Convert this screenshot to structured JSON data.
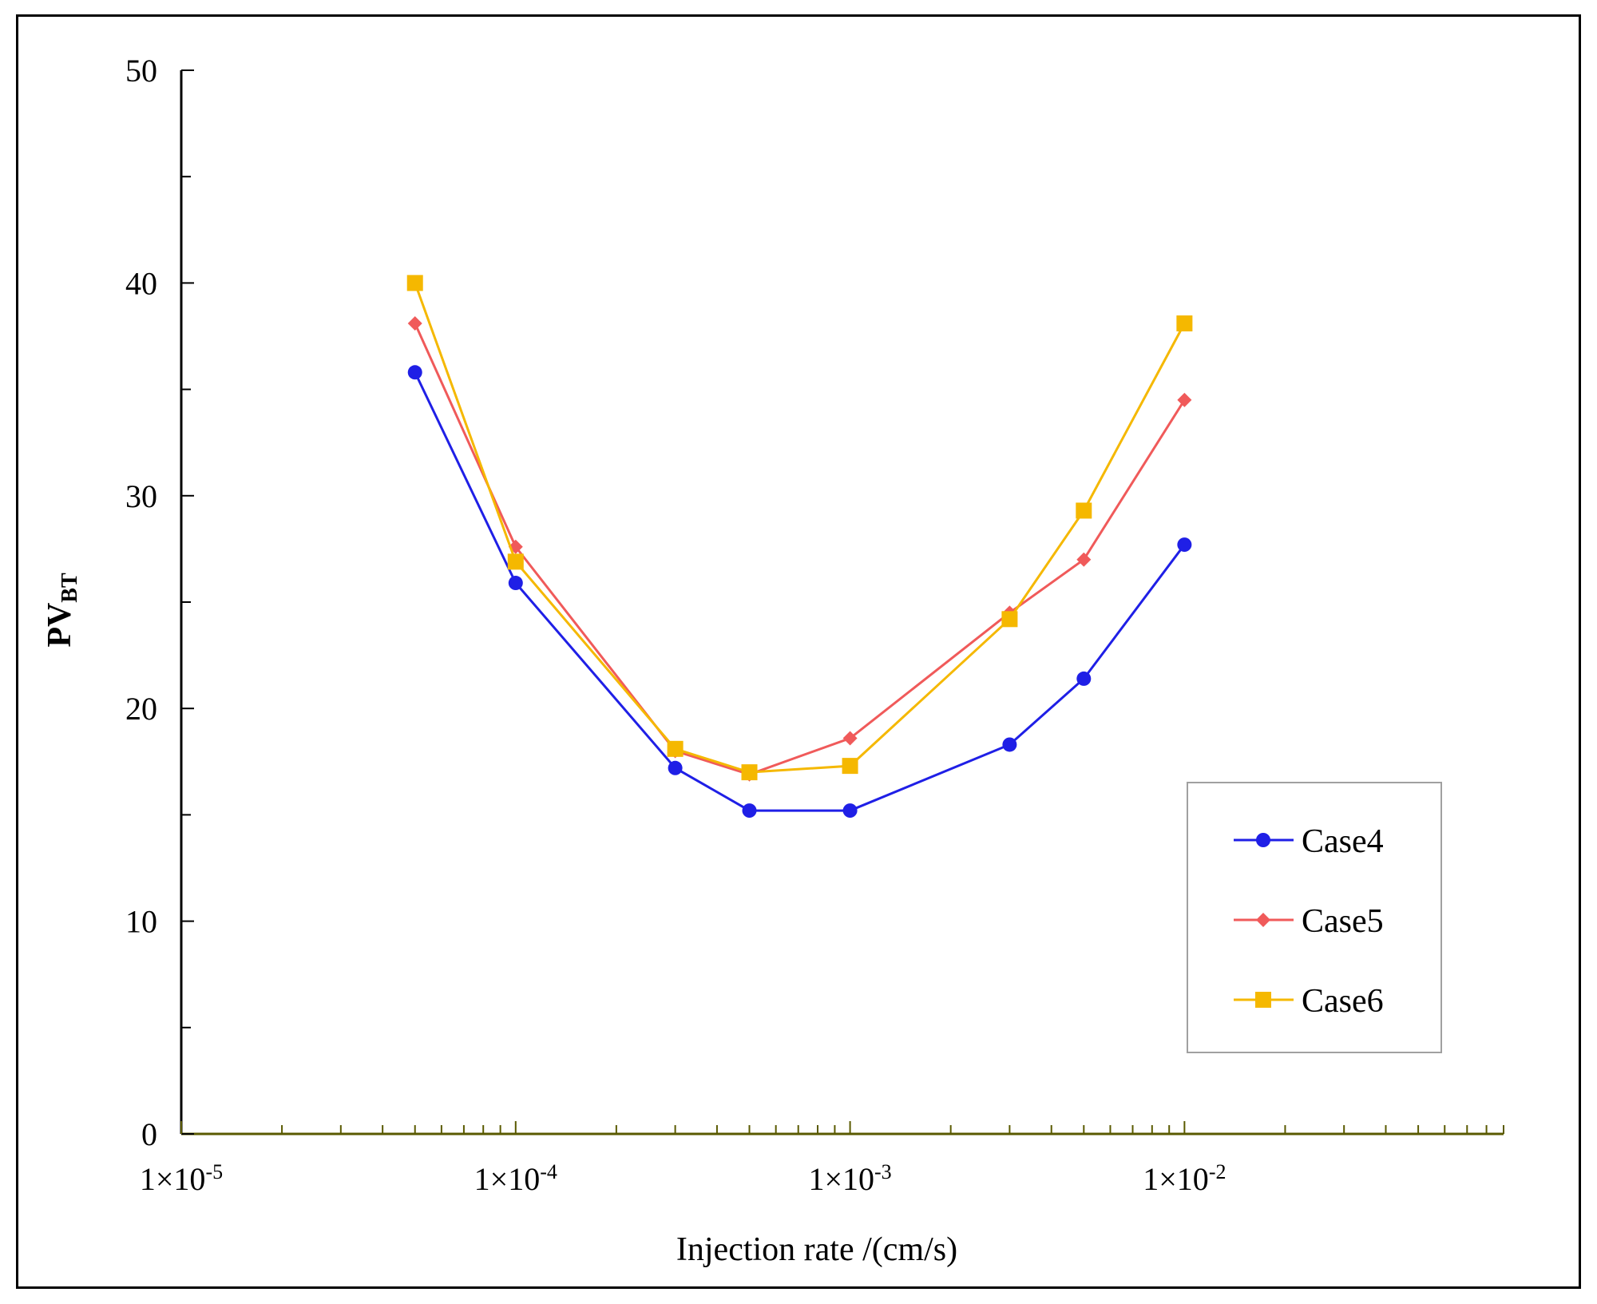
{
  "chart_data": {
    "type": "line",
    "title": "",
    "xlabel": "Injection rate /(cm/s)",
    "ylabel": {
      "main": "PV",
      "sub": "BT"
    },
    "x_scale": "log",
    "xlim": [
      1e-05,
      0.09
    ],
    "ylim": [
      0,
      50
    ],
    "y_major_ticks": [
      0,
      10,
      20,
      30,
      40,
      50
    ],
    "y_minor_ticks": [
      5,
      15,
      25,
      35,
      45
    ],
    "x_tick_labels": [
      {
        "value": 1e-05,
        "base": "1×10",
        "exp": "-5"
      },
      {
        "value": 0.0001,
        "base": "1×10",
        "exp": "-4"
      },
      {
        "value": 0.001,
        "base": "1×10",
        "exp": "-3"
      },
      {
        "value": 0.01,
        "base": "1×10",
        "exp": "-2"
      }
    ],
    "legend_position": "right",
    "x": [
      5e-05,
      0.0001,
      0.0003,
      0.0005,
      0.001,
      0.003,
      0.005,
      0.01
    ],
    "series": [
      {
        "name": "Case4",
        "color": "#1f1fe6",
        "marker": "circle",
        "values": [
          35.8,
          25.9,
          17.2,
          15.2,
          15.2,
          18.3,
          21.4,
          27.7
        ]
      },
      {
        "name": "Case5",
        "color": "#f05a5a",
        "marker": "diamond",
        "values": [
          38.1,
          27.6,
          18.0,
          16.9,
          18.6,
          24.5,
          27.0,
          34.5
        ]
      },
      {
        "name": "Case6",
        "color": "#f5b800",
        "marker": "square",
        "values": [
          40.0,
          26.9,
          18.1,
          17.0,
          17.3,
          24.2,
          29.3,
          38.1
        ]
      }
    ]
  }
}
